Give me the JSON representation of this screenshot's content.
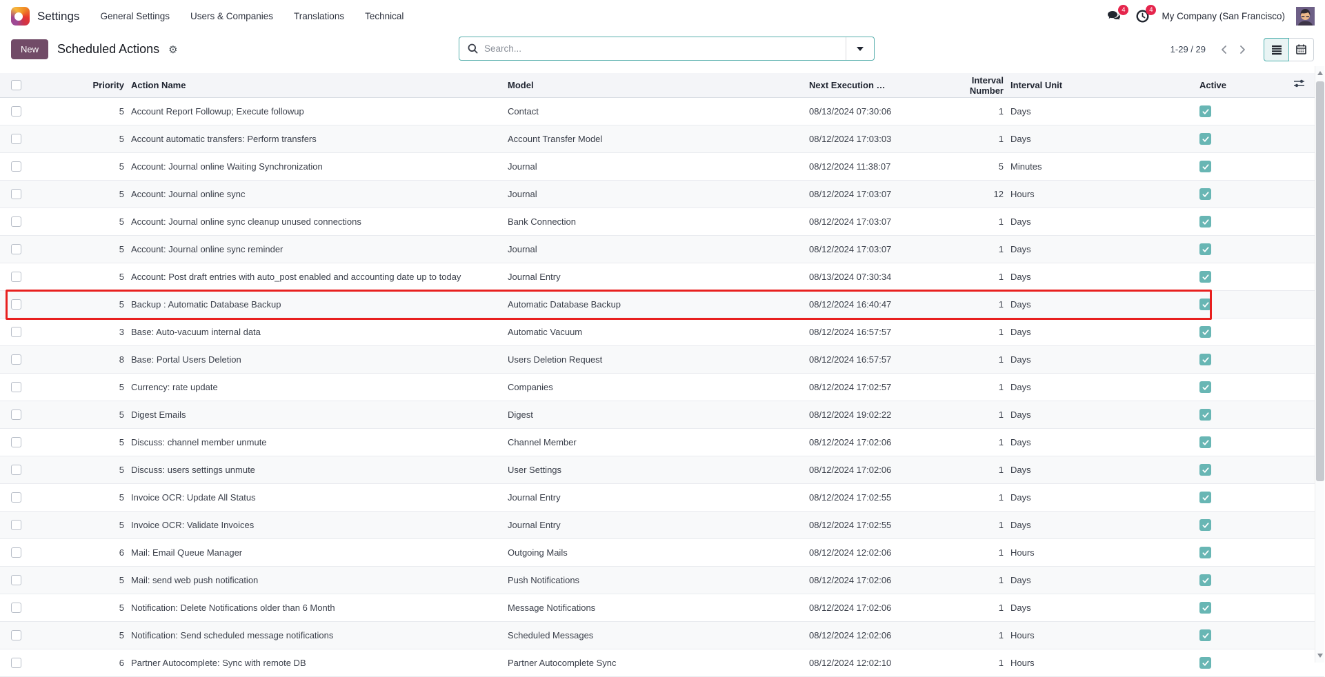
{
  "nav": {
    "app_name": "Settings",
    "menu_items": [
      "General Settings",
      "Users & Companies",
      "Translations",
      "Technical"
    ],
    "messages_badge": "4",
    "activities_badge": "4",
    "company_name": "My Company (San Francisco)"
  },
  "control_panel": {
    "new_button_label": "New",
    "page_title": "Scheduled Actions",
    "gear_glyph": "⚙",
    "search_placeholder": "Search...",
    "pager_text": "1-29 / 29"
  },
  "table": {
    "columns": {
      "priority": "Priority",
      "action_name": "Action Name",
      "model": "Model",
      "next_execution": "Next Execution …",
      "interval_number": "Interval Number",
      "interval_unit": "Interval Unit",
      "active": "Active"
    },
    "rows": [
      {
        "priority": "5",
        "name": "Account Report Followup; Execute followup",
        "model": "Contact",
        "next_execution": "08/13/2024 07:30:06",
        "interval_number": "1",
        "interval_unit": "Days",
        "active": true,
        "highlighted": false
      },
      {
        "priority": "5",
        "name": "Account automatic transfers: Perform transfers",
        "model": "Account Transfer Model",
        "next_execution": "08/12/2024 17:03:03",
        "interval_number": "1",
        "interval_unit": "Days",
        "active": true,
        "highlighted": false
      },
      {
        "priority": "5",
        "name": "Account: Journal online Waiting Synchronization",
        "model": "Journal",
        "next_execution": "08/12/2024 11:38:07",
        "interval_number": "5",
        "interval_unit": "Minutes",
        "active": true,
        "highlighted": false
      },
      {
        "priority": "5",
        "name": "Account: Journal online sync",
        "model": "Journal",
        "next_execution": "08/12/2024 17:03:07",
        "interval_number": "12",
        "interval_unit": "Hours",
        "active": true,
        "highlighted": false
      },
      {
        "priority": "5",
        "name": "Account: Journal online sync cleanup unused connections",
        "model": "Bank Connection",
        "next_execution": "08/12/2024 17:03:07",
        "interval_number": "1",
        "interval_unit": "Days",
        "active": true,
        "highlighted": false
      },
      {
        "priority": "5",
        "name": "Account: Journal online sync reminder",
        "model": "Journal",
        "next_execution": "08/12/2024 17:03:07",
        "interval_number": "1",
        "interval_unit": "Days",
        "active": true,
        "highlighted": false
      },
      {
        "priority": "5",
        "name": "Account: Post draft entries with auto_post enabled and accounting date up to today",
        "model": "Journal Entry",
        "next_execution": "08/13/2024 07:30:34",
        "interval_number": "1",
        "interval_unit": "Days",
        "active": true,
        "highlighted": false
      },
      {
        "priority": "5",
        "name": "Backup : Automatic Database Backup",
        "model": "Automatic Database Backup",
        "next_execution": "08/12/2024 16:40:47",
        "interval_number": "1",
        "interval_unit": "Days",
        "active": true,
        "highlighted": true
      },
      {
        "priority": "3",
        "name": "Base: Auto-vacuum internal data",
        "model": "Automatic Vacuum",
        "next_execution": "08/12/2024 16:57:57",
        "interval_number": "1",
        "interval_unit": "Days",
        "active": true,
        "highlighted": false
      },
      {
        "priority": "8",
        "name": "Base: Portal Users Deletion",
        "model": "Users Deletion Request",
        "next_execution": "08/12/2024 16:57:57",
        "interval_number": "1",
        "interval_unit": "Days",
        "active": true,
        "highlighted": false
      },
      {
        "priority": "5",
        "name": "Currency: rate update",
        "model": "Companies",
        "next_execution": "08/12/2024 17:02:57",
        "interval_number": "1",
        "interval_unit": "Days",
        "active": true,
        "highlighted": false
      },
      {
        "priority": "5",
        "name": "Digest Emails",
        "model": "Digest",
        "next_execution": "08/12/2024 19:02:22",
        "interval_number": "1",
        "interval_unit": "Days",
        "active": true,
        "highlighted": false
      },
      {
        "priority": "5",
        "name": "Discuss: channel member unmute",
        "model": "Channel Member",
        "next_execution": "08/12/2024 17:02:06",
        "interval_number": "1",
        "interval_unit": "Days",
        "active": true,
        "highlighted": false
      },
      {
        "priority": "5",
        "name": "Discuss: users settings unmute",
        "model": "User Settings",
        "next_execution": "08/12/2024 17:02:06",
        "interval_number": "1",
        "interval_unit": "Days",
        "active": true,
        "highlighted": false
      },
      {
        "priority": "5",
        "name": "Invoice OCR: Update All Status",
        "model": "Journal Entry",
        "next_execution": "08/12/2024 17:02:55",
        "interval_number": "1",
        "interval_unit": "Days",
        "active": true,
        "highlighted": false
      },
      {
        "priority": "5",
        "name": "Invoice OCR: Validate Invoices",
        "model": "Journal Entry",
        "next_execution": "08/12/2024 17:02:55",
        "interval_number": "1",
        "interval_unit": "Days",
        "active": true,
        "highlighted": false
      },
      {
        "priority": "6",
        "name": "Mail: Email Queue Manager",
        "model": "Outgoing Mails",
        "next_execution": "08/12/2024 12:02:06",
        "interval_number": "1",
        "interval_unit": "Hours",
        "active": true,
        "highlighted": false
      },
      {
        "priority": "5",
        "name": "Mail: send web push notification",
        "model": "Push Notifications",
        "next_execution": "08/12/2024 17:02:06",
        "interval_number": "1",
        "interval_unit": "Days",
        "active": true,
        "highlighted": false
      },
      {
        "priority": "5",
        "name": "Notification: Delete Notifications older than 6 Month",
        "model": "Message Notifications",
        "next_execution": "08/12/2024 17:02:06",
        "interval_number": "1",
        "interval_unit": "Days",
        "active": true,
        "highlighted": false
      },
      {
        "priority": "5",
        "name": "Notification: Send scheduled message notifications",
        "model": "Scheduled Messages",
        "next_execution": "08/12/2024 12:02:06",
        "interval_number": "1",
        "interval_unit": "Hours",
        "active": true,
        "highlighted": false
      },
      {
        "priority": "6",
        "name": "Partner Autocomplete: Sync with remote DB",
        "model": "Partner Autocomplete Sync",
        "next_execution": "08/12/2024 12:02:10",
        "interval_number": "1",
        "interval_unit": "Hours",
        "active": true,
        "highlighted": false
      }
    ]
  },
  "colors": {
    "brand_primary": "#714B67",
    "accent_teal": "#4fb0ae",
    "active_checkbox_teal": "#68b6b4",
    "badge_red": "#e5254c",
    "highlight_red": "#e8201f"
  }
}
